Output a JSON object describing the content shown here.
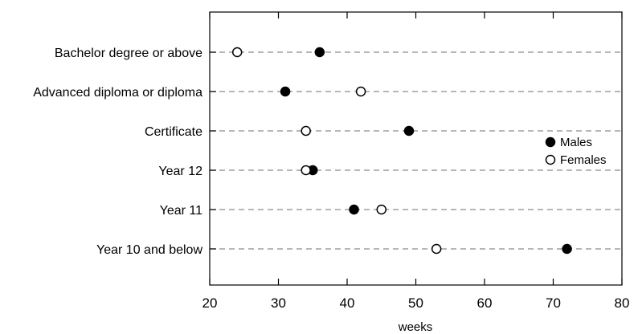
{
  "chart_data": {
    "type": "scatter",
    "title": "",
    "xlabel": "weeks",
    "ylabel": "",
    "xlim": [
      20,
      80
    ],
    "xticks": [
      20,
      30,
      40,
      50,
      60,
      70,
      80
    ],
    "grid": "dashed horizontal guide per category",
    "legend_position": "right",
    "categories": [
      "Bachelor degree or above",
      "Advanced diploma or diploma",
      "Certificate",
      "Year 12",
      "Year 11",
      "Year 10 and below"
    ],
    "series": [
      {
        "name": "Males",
        "marker": "filled-circle",
        "color": "#000000",
        "values": [
          36,
          31,
          49,
          35,
          41,
          72
        ]
      },
      {
        "name": "Females",
        "marker": "open-circle",
        "color": "#ffffff",
        "values": [
          24,
          42,
          34,
          34,
          45,
          53
        ]
      }
    ]
  }
}
